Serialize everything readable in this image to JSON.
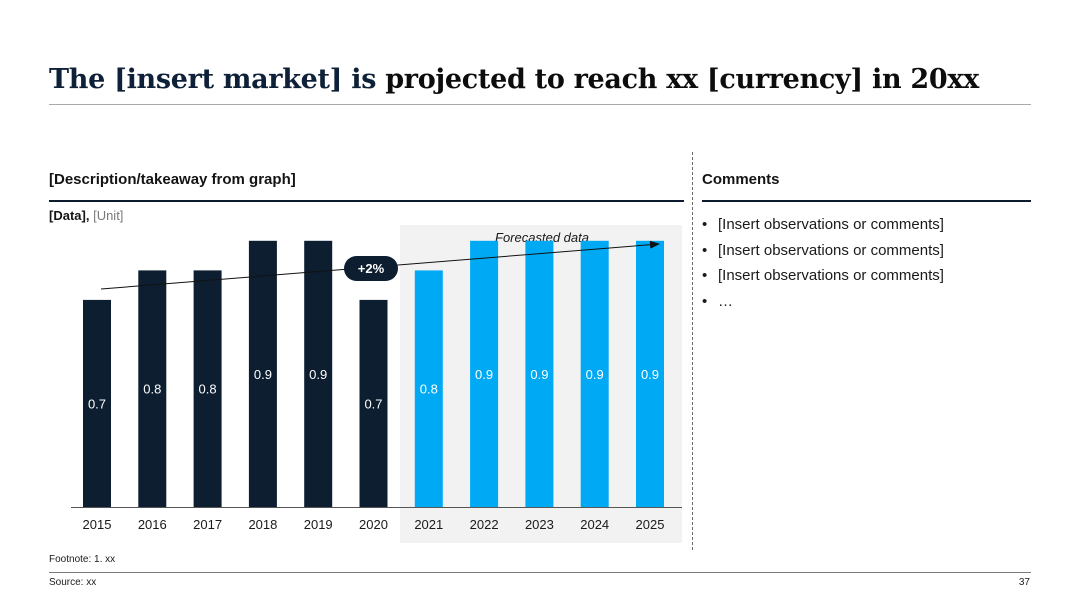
{
  "slide": {
    "title_prefix": "The [insert market] is ",
    "title_suffix": "projected to reach xx [currency] in 20xx",
    "graph_header": "[Description/takeaway from graph]",
    "comments_header": "Comments",
    "data_label": "[Data],",
    "unit_label": "[Unit]",
    "comments": [
      "[Insert observations or comments]",
      "[Insert observations or comments]",
      "[Insert observations or comments]",
      "…"
    ],
    "footnote": "Footnote: 1. xx",
    "source": "Source: xx",
    "page_number": "37"
  },
  "colors": {
    "historical": "#0c1e30",
    "forecast": "#00a9f4",
    "forecast_bg": "#f2f2f2"
  },
  "chart_data": {
    "type": "bar",
    "categories": [
      "2015",
      "2016",
      "2017",
      "2018",
      "2019",
      "2020",
      "2021",
      "2022",
      "2023",
      "2024",
      "2025"
    ],
    "values": [
      0.7,
      0.8,
      0.8,
      0.9,
      0.9,
      0.7,
      0.8,
      0.9,
      0.9,
      0.9,
      0.9
    ],
    "value_labels": [
      "0.7",
      "0.8",
      "0.8",
      "0.9",
      "0.9",
      "0.7",
      "0.8",
      "0.9",
      "0.9",
      "0.9",
      "0.9"
    ],
    "forecast_start_index": 6,
    "forecast_label": "Forecasted data",
    "cagr_label": "+2%",
    "ylim": [
      0,
      0.95
    ],
    "title": "",
    "xlabel": "",
    "ylabel": ""
  }
}
